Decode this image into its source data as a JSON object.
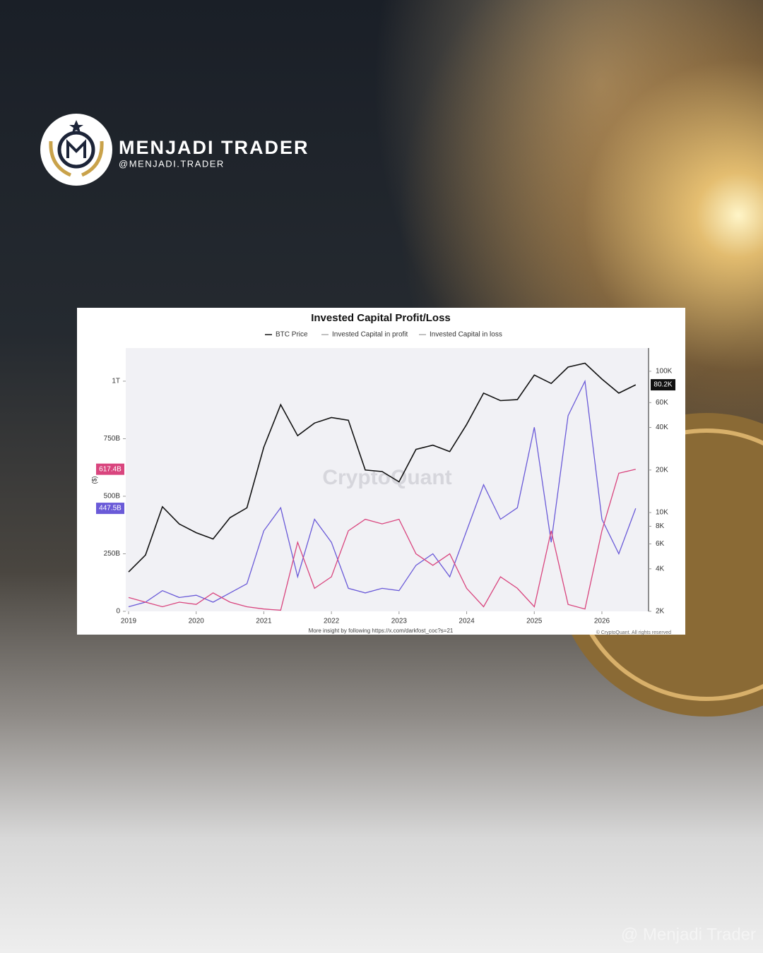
{
  "header": {
    "brand": "MENJADI TRADER",
    "handle": "@MENJADI.TRADER",
    "watermark": "@ Menjadi Trader"
  },
  "chart_data": {
    "type": "line",
    "title": "Invested Capital Profit/Loss",
    "y_label": "($)",
    "watermark": "CryptoQuant",
    "footer": "More insight by following https://x.com/darkfost_coc?s=21",
    "copyright": "© CryptoQuant. All rights reserved",
    "x": [
      2019.0,
      2019.25,
      2019.5,
      2019.75,
      2020.0,
      2020.25,
      2020.5,
      2020.75,
      2021.0,
      2021.25,
      2021.5,
      2021.75,
      2022.0,
      2022.25,
      2022.5,
      2022.75,
      2023.0,
      2023.25,
      2023.5,
      2023.75,
      2024.0,
      2024.25,
      2024.5,
      2024.75,
      2025.0,
      2025.25,
      2025.5,
      2025.75,
      2026.0,
      2026.25,
      2026.5
    ],
    "xlim": [
      2019,
      2026.69
    ],
    "xticks": [
      2019,
      2020,
      2021,
      2022,
      2023,
      2024,
      2025,
      2026
    ],
    "ylim": [
      0,
      1144000000000
    ],
    "yticks": [
      0,
      {
        "value": 250000000000,
        "label": "250B"
      },
      {
        "value": 500000000000,
        "label": "500B"
      },
      {
        "value": 750000000000,
        "label": "750B"
      },
      {
        "value": 1000000000000,
        "label": "1T"
      }
    ],
    "y2lim": [
      2000,
      146000
    ],
    "y2scale": "log",
    "y2ticks": [
      {
        "value": 2000,
        "label": "2K"
      },
      {
        "value": 4000,
        "label": "4K"
      },
      {
        "value": 6000,
        "label": "6K"
      },
      {
        "value": 8000,
        "label": "8K"
      },
      {
        "value": 10000,
        "label": "10K"
      },
      {
        "value": 20000,
        "label": "20K"
      },
      {
        "value": 40000,
        "label": "40K"
      },
      {
        "value": 60000,
        "label": "60K"
      },
      {
        "value": 100000,
        "label": "100K"
      }
    ],
    "legend": "top",
    "series": [
      {
        "name": "BTC Price",
        "color": "#111111",
        "axis": "y2",
        "values": [
          3800,
          5000,
          11000,
          8300,
          7200,
          6500,
          9200,
          10800,
          29000,
          58000,
          35000,
          43000,
          47000,
          45000,
          20000,
          19500,
          16500,
          28000,
          30000,
          27000,
          42000,
          70000,
          62000,
          63000,
          94000,
          82000,
          107000,
          114000,
          88000,
          70000,
          80200
        ],
        "value_labels": [
          null,
          null,
          null,
          null,
          null,
          null,
          null,
          null,
          null,
          null,
          null,
          null,
          null,
          null,
          null,
          null,
          null,
          null,
          null,
          null,
          null,
          null,
          null,
          null,
          null,
          null,
          null,
          null,
          null,
          null,
          "80.2K"
        ]
      },
      {
        "name": "Invested Capital in profit",
        "color": "#6a5ad8",
        "values": [
          20000000000,
          40000000000,
          90000000000,
          60000000000,
          70000000000,
          40000000000,
          80000000000,
          120000000000,
          350000000000,
          450000000000,
          150000000000,
          400000000000,
          300000000000,
          100000000000,
          80000000000,
          100000000000,
          90000000000,
          200000000000,
          250000000000,
          150000000000,
          350000000000,
          550000000000,
          400000000000,
          450000000000,
          800000000000,
          300000000000,
          850000000000,
          1000000000000,
          400000000000,
          250000000000,
          447500000000
        ],
        "value_labels": [
          null,
          null,
          null,
          null,
          null,
          null,
          null,
          null,
          null,
          null,
          null,
          null,
          null,
          null,
          null,
          null,
          null,
          null,
          null,
          null,
          null,
          null,
          null,
          null,
          null,
          null,
          null,
          null,
          null,
          null,
          "447.5B"
        ]
      },
      {
        "name": "Invested Capital in loss",
        "color": "#d9457e",
        "values": [
          60000000000,
          40000000000,
          20000000000,
          40000000000,
          30000000000,
          80000000000,
          40000000000,
          20000000000,
          10000000000,
          5000000000,
          300000000000,
          100000000000,
          150000000000,
          350000000000,
          400000000000,
          380000000000,
          400000000000,
          250000000000,
          200000000000,
          250000000000,
          100000000000,
          20000000000,
          150000000000,
          100000000000,
          20000000000,
          350000000000,
          30000000000,
          10000000000,
          350000000000,
          600000000000,
          617400000000
        ],
        "value_labels": [
          null,
          null,
          null,
          null,
          null,
          null,
          null,
          null,
          null,
          null,
          null,
          null,
          null,
          null,
          null,
          null,
          null,
          null,
          null,
          null,
          null,
          null,
          null,
          null,
          null,
          null,
          null,
          null,
          null,
          null,
          "617.4B"
        ]
      }
    ]
  }
}
